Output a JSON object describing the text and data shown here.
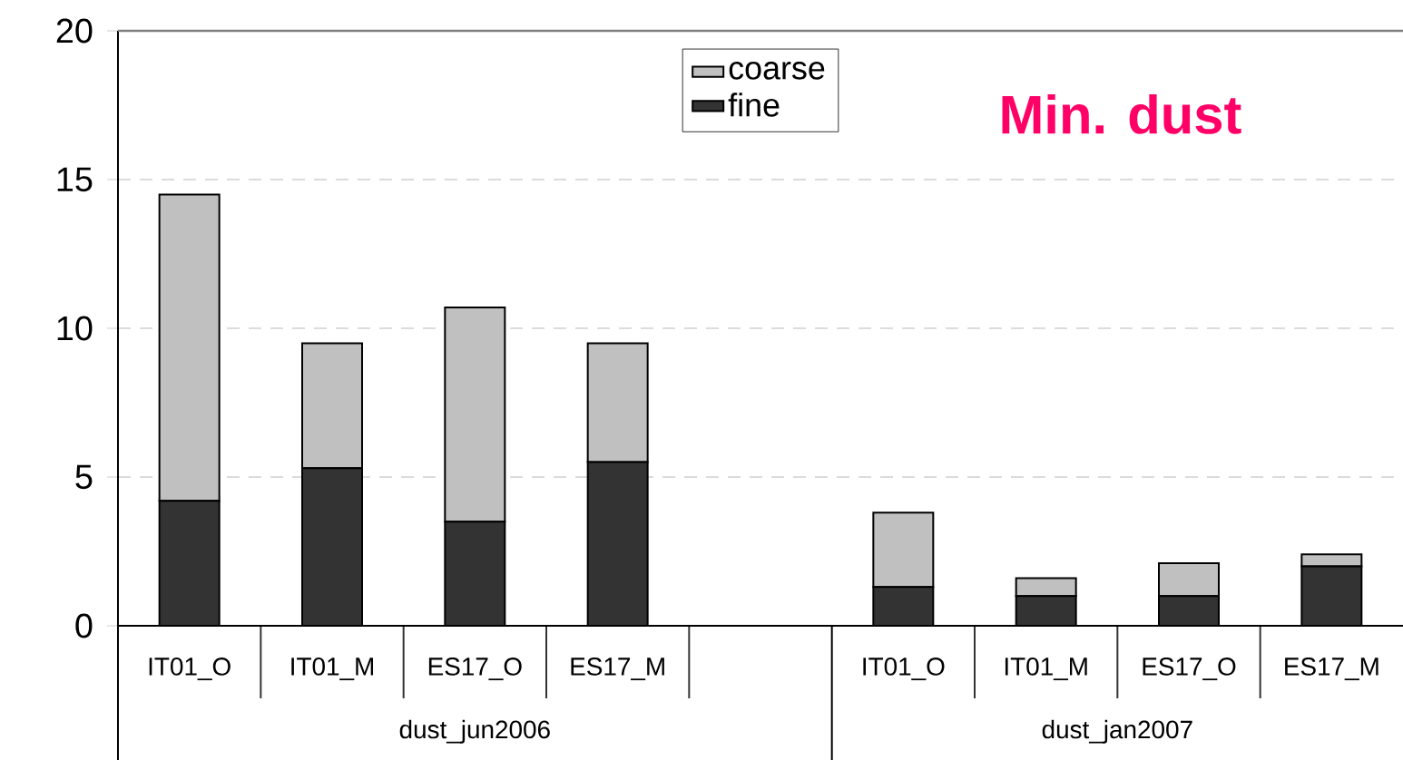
{
  "chart_data": {
    "type": "bar",
    "title": "Min. dust",
    "stacked": true,
    "categories": [
      "IT01_O",
      "IT01_M",
      "ES17_O",
      "ES17_M",
      null,
      "IT01_O",
      "IT01_M",
      "ES17_O",
      "ES17_M"
    ],
    "series": [
      {
        "name": "fine",
        "color": "#333333",
        "values": [
          4.2,
          5.3,
          3.5,
          5.5,
          null,
          1.3,
          1.0,
          1.0,
          2.0
        ]
      },
      {
        "name": "coarse",
        "color": "#c0c0c0",
        "values": [
          10.3,
          4.2,
          7.2,
          4.0,
          null,
          2.5,
          0.6,
          1.1,
          0.4
        ]
      }
    ],
    "ylim": [
      0,
      20
    ],
    "yticks": [
      0,
      5,
      10,
      15,
      20
    ],
    "grid": "y",
    "legend": "top",
    "annotations": [
      "dust_jun2006",
      "dust_jan2007"
    ]
  }
}
